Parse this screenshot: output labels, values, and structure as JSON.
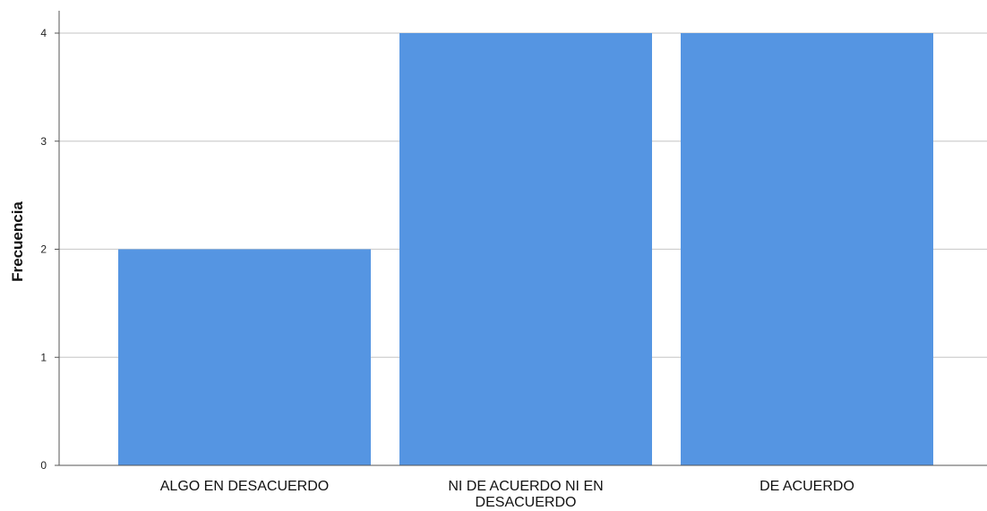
{
  "chart_data": {
    "type": "bar",
    "categories": [
      "ALGO EN DESACUERDO",
      "NI DE ACUERDO NI EN DESACUERDO",
      "DE ACUERDO"
    ],
    "category_label_lines": [
      [
        "ALGO EN DESACUERDO"
      ],
      [
        "NI DE ACUERDO NI EN",
        "DESACUERDO"
      ],
      [
        "DE ACUERDO"
      ]
    ],
    "values": [
      2,
      4,
      4
    ],
    "title": "",
    "xlabel": "",
    "ylabel": "Frecuencia",
    "ylim": [
      0,
      4
    ],
    "yticks": [
      "0",
      "1",
      "2",
      "3",
      "4"
    ],
    "grid": true,
    "bar_color": "#5595e2",
    "grid_color": "#cfcfcf",
    "axis_color": "#555555"
  }
}
